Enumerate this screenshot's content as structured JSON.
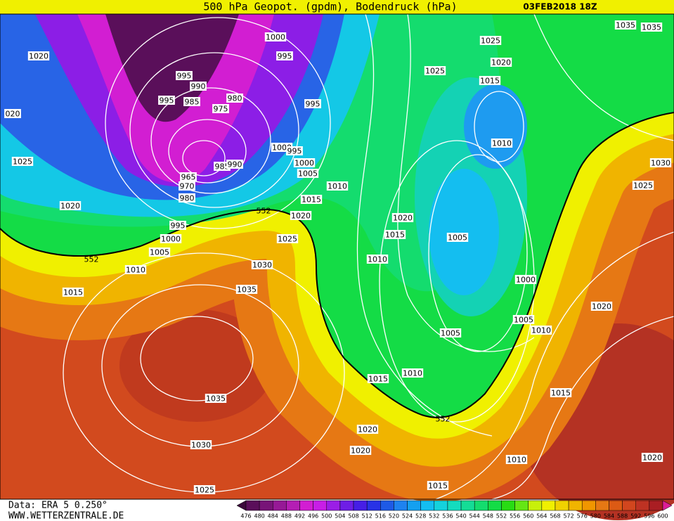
{
  "header": {
    "title": "500 hPa Geopot. (gpdm), Bodendruck (hPa)",
    "date": "03FEB2018 18Z"
  },
  "isobar_labels": [
    "1000",
    "995",
    "1020",
    "995",
    "990",
    "985",
    "995",
    "980",
    "975",
    "995",
    "1000",
    "995",
    "985",
    "990",
    "965",
    "970",
    "980",
    "1000",
    "1005",
    "1010",
    "1015",
    "1020",
    "1025",
    "1020",
    "995",
    "1000",
    "1005",
    "1010",
    "1015",
    "1025",
    "1030",
    "1035",
    "1035",
    "1030",
    "1025",
    "1015",
    "1010",
    "1005",
    "1005",
    "1010",
    "1015",
    "1020",
    "1020",
    "1010",
    "1015",
    "1020",
    "1020",
    "1025",
    "1000",
    "1005",
    "1010",
    "1015",
    "1020",
    "1010",
    "1015",
    "1020",
    "1025",
    "1025",
    "1035",
    "1035",
    "020",
    "1030"
  ],
  "contour_labels": [
    "552",
    "552",
    "552"
  ],
  "footer": {
    "source": "Data: ERA 5 0.250°",
    "website": "WWW.WETTERZENTRALE.DE"
  },
  "colorbar": {
    "labels": [
      476,
      480,
      484,
      488,
      492,
      496,
      500,
      504,
      508,
      512,
      516,
      520,
      524,
      528,
      532,
      536,
      540,
      544,
      548,
      552,
      556,
      560,
      564,
      568,
      572,
      576,
      580,
      584,
      588,
      592,
      596,
      600
    ],
    "colors": [
      "#3c0a3c",
      "#5a0f5a",
      "#781478",
      "#961996",
      "#b41eb4",
      "#d21ed2",
      "#c81ee6",
      "#9b1ee6",
      "#6e1ee6",
      "#461ee6",
      "#2832e6",
      "#1e5ae6",
      "#1e82f0",
      "#14a0f0",
      "#14bef0",
      "#14d2dc",
      "#14dcbe",
      "#14dc96",
      "#14dc6e",
      "#14dc46",
      "#28dc14",
      "#64e614",
      "#c8f00a",
      "#f0f000",
      "#f0d200",
      "#f0b400",
      "#f09600",
      "#e67814",
      "#dc5a14",
      "#d2461e",
      "#be3223",
      "#aa1e23",
      "#dc1e96"
    ]
  }
}
